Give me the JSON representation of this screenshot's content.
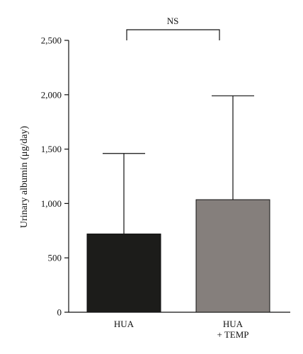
{
  "chart_data": {
    "type": "bar",
    "categories": [
      "HUA",
      "HUA\n+ TEMP"
    ],
    "category_lines": [
      [
        "HUA"
      ],
      [
        "HUA",
        "+ TEMP"
      ]
    ],
    "values": [
      720,
      1035
    ],
    "error_upper": [
      1460,
      1990
    ],
    "bar_colors": [
      "#1c1c1a",
      "#857f7c"
    ],
    "ylabel": "Urinary albumin (μg/day)",
    "ylim": [
      0,
      2500
    ],
    "yticks": [
      0,
      500,
      1000,
      1500,
      2000,
      2500
    ],
    "ytick_labels": [
      "0",
      "500",
      "1,000",
      "1,500",
      "2,000",
      "2,500"
    ],
    "grid": false,
    "annotation": "NS"
  }
}
